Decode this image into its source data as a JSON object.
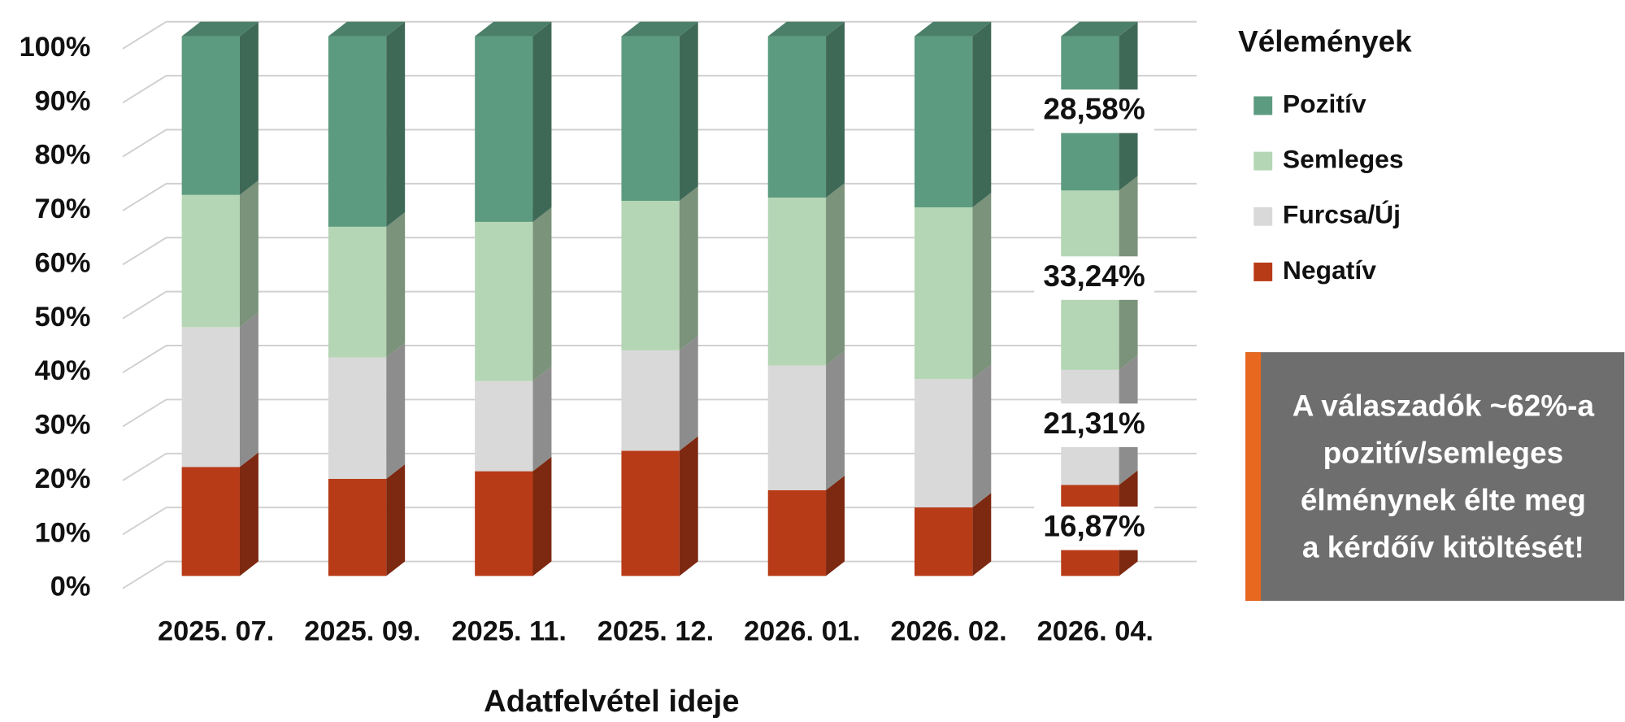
{
  "chart_data": {
    "type": "bar3d_stacked",
    "categories": [
      "2025. 07.",
      "2025. 09.",
      "2025. 11.",
      "2025. 12.",
      "2026. 01.",
      "2026. 02.",
      "2026. 04."
    ],
    "xlabel": "Adatfelvétel ideje",
    "legend_title": "Vélemények",
    "legend": "right",
    "series": [
      {
        "name": "Pozitív",
        "color": "#5d9b80",
        "values": [
          29.4,
          35.3,
          34.4,
          30.5,
          29.9,
          31.7,
          28.58
        ],
        "value_labels": [
          null,
          null,
          null,
          null,
          null,
          null,
          "28,58%"
        ]
      },
      {
        "name": "Semleges",
        "color": "#b5d6b5",
        "values": [
          24.5,
          24.2,
          29.5,
          27.7,
          31.1,
          31.8,
          33.24
        ],
        "value_labels": [
          null,
          null,
          null,
          null,
          null,
          null,
          "33,24%"
        ]
      },
      {
        "name": "Furcsa/Új",
        "color": "#d9d9d9",
        "values": [
          25.9,
          22.5,
          16.7,
          18.6,
          23.1,
          23.8,
          21.31
        ],
        "value_labels": [
          null,
          null,
          null,
          null,
          null,
          null,
          "21,31%"
        ]
      },
      {
        "name": "Negatív",
        "color": "#b83b17",
        "values": [
          20.2,
          18.0,
          19.4,
          23.2,
          15.9,
          12.7,
          16.87
        ],
        "value_labels": [
          null,
          null,
          null,
          null,
          null,
          null,
          "16,87%"
        ]
      }
    ],
    "ylim": [
      0,
      100
    ],
    "yticks": [
      {
        "value": 0,
        "label": "0%"
      },
      {
        "value": 10,
        "label": "10%"
      },
      {
        "value": 20,
        "label": "20%"
      },
      {
        "value": 30,
        "label": "30%"
      },
      {
        "value": 40,
        "label": "40%"
      },
      {
        "value": 50,
        "label": "50%"
      },
      {
        "value": 60,
        "label": "60%"
      },
      {
        "value": 70,
        "label": "70%"
      },
      {
        "value": 80,
        "label": "80%"
      },
      {
        "value": 90,
        "label": "90%"
      },
      {
        "value": 100,
        "label": "100%"
      }
    ],
    "grid": true,
    "annotation": [
      "A válaszadók ~62%-a",
      "pozitív/semleges",
      "élménynek élte meg",
      "a kérdőív kitöltését!"
    ]
  }
}
